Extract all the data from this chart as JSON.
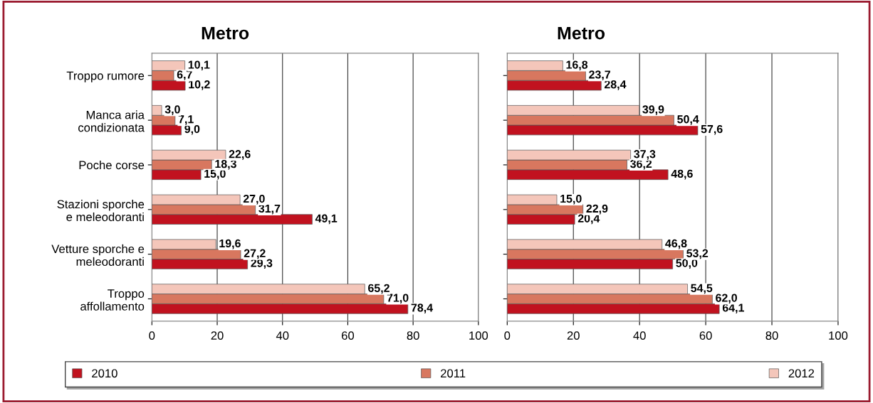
{
  "chart_data": [
    {
      "type": "bar",
      "orientation": "horizontal",
      "title": "Metro",
      "categories": [
        "Troppo rumore",
        "Manca aria\ncondizionata",
        "Poche corse",
        "Stazioni sporche\ne meleodoranti",
        "Vetture sporche e\nmeleodoranti",
        "Troppo\naffollamento"
      ],
      "series": [
        {
          "name": "2010",
          "color": "#c1121f",
          "values": [
            10.2,
            9.0,
            15.0,
            49.1,
            29.3,
            78.4
          ],
          "value_labels": [
            "10,2",
            "9,0",
            "15,0",
            "49,1",
            "29,3",
            "78,4"
          ]
        },
        {
          "name": "2011",
          "color": "#d8775f",
          "values": [
            6.7,
            7.1,
            18.3,
            31.7,
            27.2,
            71.0
          ],
          "value_labels": [
            "6,7",
            "7,1",
            "18,3",
            "31,7",
            "27,2",
            "71,0"
          ]
        },
        {
          "name": "2012",
          "color": "#f4c6ba",
          "values": [
            10.1,
            3.0,
            22.6,
            27.0,
            19.6,
            65.2
          ],
          "value_labels": [
            "10,1",
            "3,0",
            "22,6",
            "27,0",
            "19,6",
            "65,2"
          ]
        }
      ],
      "xlim": [
        0,
        100
      ],
      "xticks": [
        0,
        20,
        40,
        60,
        80,
        100
      ],
      "grid": "x",
      "legend": "bottom"
    },
    {
      "type": "bar",
      "orientation": "horizontal",
      "title": "Metro",
      "categories": [
        null,
        null,
        null,
        null,
        null,
        null
      ],
      "series": [
        {
          "name": "2010",
          "color": "#c1121f",
          "values": [
            28.4,
            57.6,
            48.6,
            20.4,
            50.0,
            64.1
          ],
          "value_labels": [
            "28,4",
            "57,6",
            "48,6",
            "20,4",
            "50,0",
            "64,1"
          ]
        },
        {
          "name": "2011",
          "color": "#d8775f",
          "values": [
            23.7,
            50.4,
            36.2,
            22.9,
            53.2,
            62.0
          ],
          "value_labels": [
            "23,7",
            "50,4",
            "36,2",
            "22,9",
            "53,2",
            "62,0"
          ]
        },
        {
          "name": "2012",
          "color": "#f4c6ba",
          "values": [
            16.8,
            39.9,
            37.3,
            15.0,
            46.8,
            54.5
          ],
          "value_labels": [
            "16,8",
            "39,9",
            "37,3",
            "15,0",
            "46,8",
            "54,5"
          ]
        }
      ],
      "xlim": [
        0,
        100
      ],
      "xticks": [
        0,
        20,
        40,
        60,
        80,
        100
      ],
      "grid": "x",
      "tick_labels": "x"
    }
  ]
}
